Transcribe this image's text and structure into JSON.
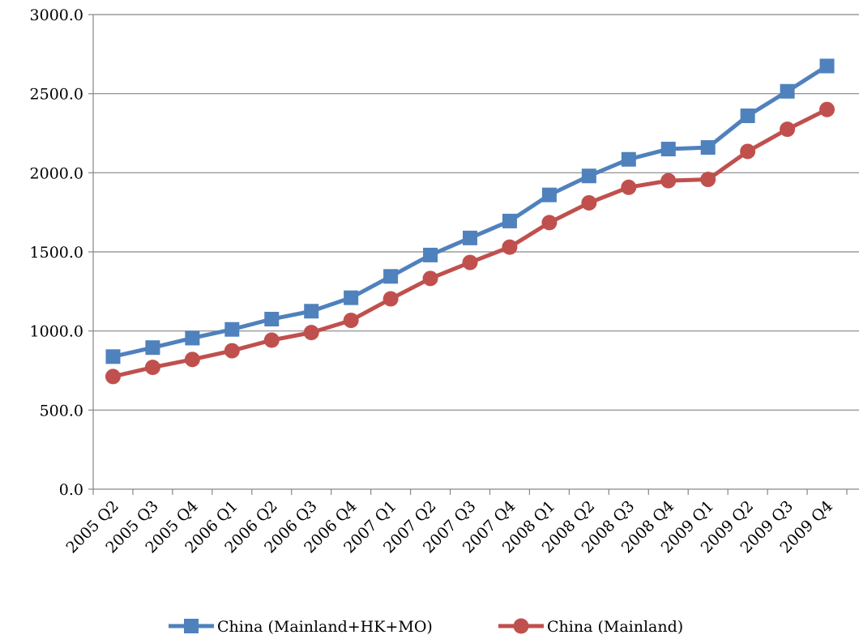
{
  "chart_data": {
    "type": "line",
    "title": "",
    "xlabel": "",
    "ylabel": "",
    "ylim": [
      0,
      3000
    ],
    "ytick_step": 500,
    "ytick_labels": [
      "0.0",
      "500.0",
      "1000.0",
      "1500.0",
      "2000.0",
      "2500.0",
      "3000.0"
    ],
    "grid": "horizontal",
    "legend_position": "bottom",
    "categories": [
      "2005 Q2",
      "2005 Q3",
      "2005 Q4",
      "2006 Q1",
      "2006 Q2",
      "2006 Q3",
      "2006 Q4",
      "2007 Q1",
      "2007 Q2",
      "2007 Q3",
      "2007 Q4",
      "2008 Q1",
      "2008 Q2",
      "2008 Q3",
      "2008 Q4",
      "2009 Q1",
      "2009 Q2",
      "2009 Q3",
      "2009 Q4"
    ],
    "series": [
      {
        "name": "China (Mainland+HK+MO)",
        "color": "#4f81bd",
        "marker": "square",
        "values": [
          838,
          895,
          955,
          1010,
          1075,
          1125,
          1210,
          1345,
          1480,
          1588,
          1695,
          1860,
          1980,
          2085,
          2150,
          2160,
          2360,
          2515,
          2675
        ]
      },
      {
        "name": "China (Mainland)",
        "color": "#c0504d",
        "marker": "circle",
        "values": [
          712,
          770,
          820,
          875,
          942,
          990,
          1067,
          1203,
          1332,
          1433,
          1530,
          1685,
          1810,
          1908,
          1950,
          1958,
          2135,
          2275,
          2400
        ]
      }
    ]
  }
}
